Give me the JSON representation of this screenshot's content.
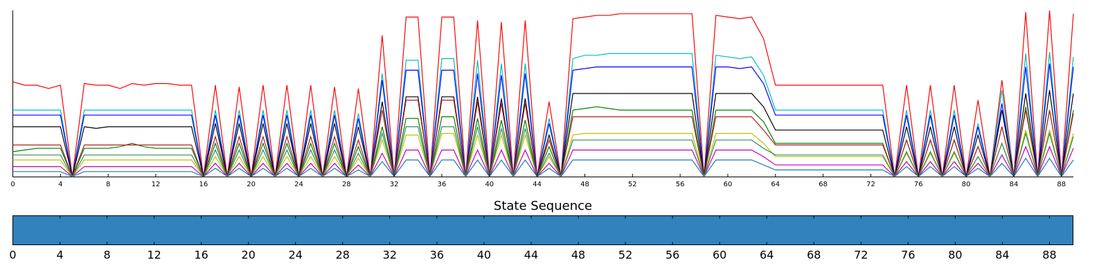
{
  "chart_data": [
    {
      "type": "line",
      "title": "",
      "xlabel": "",
      "ylabel": "",
      "xlim": [
        0,
        89
      ],
      "ylim": [
        0,
        1
      ],
      "x_ticks": [
        0,
        4,
        8,
        12,
        16,
        20,
        24,
        28,
        32,
        36,
        40,
        44,
        48,
        52,
        56,
        60,
        64,
        68,
        72,
        76,
        80,
        84,
        88
      ],
      "y_ticks_shown": false,
      "legend": "none",
      "grid": false,
      "series_colors": [
        "#ff0000",
        "#00bfbf",
        "#0000ff",
        "#000000",
        "#008000",
        "#bfbf00",
        "#bf00bf",
        "#b22222",
        "#1f77b4",
        "#2e8b57"
      ],
      "series": [
        {
          "color": "#ff0000",
          "values": [
            0.57,
            0.55,
            0.55,
            0.53,
            0.55,
            0.0,
            0.56,
            0.55,
            0.55,
            0.53,
            0.56,
            0.55,
            0.56,
            0.56,
            0.55,
            0.55,
            0.0,
            0.55,
            0.0,
            0.54,
            0.0,
            0.55,
            0.0,
            0.55,
            0.0,
            0.55,
            0.0,
            0.54,
            0.0,
            0.53,
            0.0,
            0.85,
            0.0,
            0.96,
            0.96,
            0.0,
            0.96,
            0.96,
            0.0,
            0.94,
            0.0,
            0.93,
            0.0,
            0.94,
            0.0,
            0.45,
            0.0,
            0.95,
            0.96,
            0.97,
            0.97,
            0.98,
            0.98,
            0.98,
            0.98,
            0.98,
            0.98,
            0.98,
            0.0,
            0.97,
            0.96,
            0.95,
            0.96,
            0.83,
            0.55,
            0.55,
            0.55,
            0.55,
            0.55,
            0.55,
            0.55,
            0.55,
            0.55,
            0.55,
            0.0,
            0.55,
            0.0,
            0.55,
            0.0,
            0.55,
            0.0,
            0.46,
            0.0,
            0.58,
            0.0,
            0.99,
            0.0,
            1.0,
            0.0,
            0.98
          ]
        },
        {
          "color": "#00bfbf",
          "values": [
            0.4,
            0.4,
            0.4,
            0.4,
            0.4,
            0.0,
            0.4,
            0.4,
            0.4,
            0.4,
            0.4,
            0.4,
            0.4,
            0.4,
            0.4,
            0.4,
            0.0,
            0.4,
            0.0,
            0.4,
            0.0,
            0.4,
            0.0,
            0.4,
            0.0,
            0.4,
            0.0,
            0.4,
            0.0,
            0.38,
            0.0,
            0.62,
            0.0,
            0.7,
            0.7,
            0.0,
            0.71,
            0.71,
            0.0,
            0.7,
            0.0,
            0.68,
            0.0,
            0.68,
            0.0,
            0.35,
            0.0,
            0.71,
            0.73,
            0.73,
            0.74,
            0.74,
            0.74,
            0.74,
            0.74,
            0.74,
            0.74,
            0.74,
            0.0,
            0.73,
            0.72,
            0.71,
            0.72,
            0.61,
            0.4,
            0.4,
            0.4,
            0.4,
            0.4,
            0.4,
            0.4,
            0.4,
            0.4,
            0.4,
            0.0,
            0.4,
            0.0,
            0.4,
            0.0,
            0.4,
            0.0,
            0.32,
            0.0,
            0.52,
            0.0,
            0.74,
            0.0,
            0.75,
            0.0,
            0.72
          ]
        },
        {
          "color": "#0000ff",
          "values": [
            0.37,
            0.37,
            0.37,
            0.37,
            0.37,
            0.0,
            0.37,
            0.37,
            0.37,
            0.37,
            0.37,
            0.37,
            0.37,
            0.37,
            0.37,
            0.37,
            0.0,
            0.37,
            0.0,
            0.37,
            0.0,
            0.37,
            0.0,
            0.37,
            0.0,
            0.37,
            0.0,
            0.37,
            0.0,
            0.35,
            0.0,
            0.58,
            0.0,
            0.64,
            0.64,
            0.0,
            0.64,
            0.64,
            0.0,
            0.62,
            0.0,
            0.61,
            0.0,
            0.62,
            0.0,
            0.32,
            0.0,
            0.64,
            0.65,
            0.66,
            0.66,
            0.66,
            0.66,
            0.66,
            0.66,
            0.66,
            0.66,
            0.66,
            0.0,
            0.66,
            0.66,
            0.65,
            0.66,
            0.56,
            0.37,
            0.37,
            0.37,
            0.37,
            0.37,
            0.37,
            0.37,
            0.37,
            0.37,
            0.37,
            0.0,
            0.37,
            0.0,
            0.37,
            0.0,
            0.37,
            0.0,
            0.3,
            0.0,
            0.44,
            0.0,
            0.66,
            0.0,
            0.68,
            0.0,
            0.66
          ]
        },
        {
          "color": "#000000",
          "values": [
            0.3,
            0.3,
            0.3,
            0.3,
            0.3,
            0.0,
            0.3,
            0.29,
            0.3,
            0.3,
            0.3,
            0.3,
            0.3,
            0.3,
            0.3,
            0.3,
            0.0,
            0.32,
            0.0,
            0.32,
            0.0,
            0.32,
            0.0,
            0.32,
            0.0,
            0.32,
            0.0,
            0.32,
            0.0,
            0.3,
            0.0,
            0.45,
            0.0,
            0.48,
            0.48,
            0.0,
            0.48,
            0.48,
            0.0,
            0.48,
            0.0,
            0.47,
            0.0,
            0.47,
            0.0,
            0.25,
            0.0,
            0.5,
            0.5,
            0.5,
            0.5,
            0.5,
            0.5,
            0.5,
            0.5,
            0.5,
            0.5,
            0.5,
            0.0,
            0.5,
            0.5,
            0.5,
            0.5,
            0.42,
            0.28,
            0.28,
            0.28,
            0.28,
            0.28,
            0.28,
            0.28,
            0.28,
            0.28,
            0.28,
            0.0,
            0.3,
            0.0,
            0.3,
            0.0,
            0.3,
            0.0,
            0.25,
            0.0,
            0.4,
            0.0,
            0.5,
            0.0,
            0.52,
            0.0,
            0.5
          ]
        },
        {
          "color": "#008000",
          "values": [
            0.15,
            0.16,
            0.17,
            0.17,
            0.17,
            0.0,
            0.17,
            0.17,
            0.17,
            0.18,
            0.2,
            0.18,
            0.17,
            0.17,
            0.17,
            0.17,
            0.0,
            0.2,
            0.0,
            0.2,
            0.0,
            0.2,
            0.0,
            0.2,
            0.0,
            0.2,
            0.0,
            0.2,
            0.0,
            0.18,
            0.0,
            0.3,
            0.0,
            0.35,
            0.35,
            0.0,
            0.36,
            0.36,
            0.0,
            0.35,
            0.0,
            0.34,
            0.0,
            0.34,
            0.0,
            0.18,
            0.0,
            0.4,
            0.41,
            0.42,
            0.41,
            0.4,
            0.4,
            0.4,
            0.4,
            0.4,
            0.4,
            0.4,
            0.0,
            0.4,
            0.4,
            0.4,
            0.4,
            0.33,
            0.2,
            0.2,
            0.2,
            0.2,
            0.2,
            0.2,
            0.2,
            0.2,
            0.2,
            0.2,
            0.0,
            0.22,
            0.0,
            0.22,
            0.0,
            0.22,
            0.0,
            0.18,
            0.0,
            0.3,
            0.0,
            0.42,
            0.0,
            0.4,
            0.0,
            0.4
          ]
        },
        {
          "color": "#bfbf00",
          "values": [
            0.1,
            0.1,
            0.1,
            0.1,
            0.1,
            0.0,
            0.1,
            0.1,
            0.1,
            0.1,
            0.1,
            0.1,
            0.1,
            0.1,
            0.1,
            0.1,
            0.0,
            0.12,
            0.0,
            0.12,
            0.0,
            0.12,
            0.0,
            0.12,
            0.0,
            0.12,
            0.0,
            0.12,
            0.0,
            0.11,
            0.0,
            0.22,
            0.0,
            0.25,
            0.25,
            0.0,
            0.26,
            0.26,
            0.0,
            0.25,
            0.0,
            0.25,
            0.0,
            0.25,
            0.0,
            0.12,
            0.0,
            0.25,
            0.26,
            0.26,
            0.26,
            0.26,
            0.26,
            0.26,
            0.26,
            0.26,
            0.26,
            0.26,
            0.0,
            0.26,
            0.26,
            0.26,
            0.26,
            0.2,
            0.12,
            0.12,
            0.12,
            0.12,
            0.12,
            0.12,
            0.12,
            0.12,
            0.12,
            0.12,
            0.0,
            0.14,
            0.0,
            0.14,
            0.0,
            0.14,
            0.0,
            0.12,
            0.0,
            0.2,
            0.0,
            0.28,
            0.0,
            0.28,
            0.0,
            0.26
          ]
        },
        {
          "color": "#bf00bf",
          "values": [
            0.06,
            0.06,
            0.06,
            0.06,
            0.06,
            0.0,
            0.06,
            0.06,
            0.06,
            0.06,
            0.06,
            0.06,
            0.06,
            0.06,
            0.06,
            0.06,
            0.0,
            0.08,
            0.0,
            0.08,
            0.0,
            0.08,
            0.0,
            0.08,
            0.0,
            0.08,
            0.0,
            0.08,
            0.0,
            0.07,
            0.0,
            0.14,
            0.0,
            0.16,
            0.16,
            0.0,
            0.16,
            0.16,
            0.0,
            0.16,
            0.0,
            0.16,
            0.0,
            0.16,
            0.0,
            0.08,
            0.0,
            0.16,
            0.16,
            0.16,
            0.16,
            0.16,
            0.16,
            0.16,
            0.16,
            0.16,
            0.16,
            0.16,
            0.0,
            0.16,
            0.16,
            0.16,
            0.16,
            0.12,
            0.07,
            0.07,
            0.07,
            0.07,
            0.07,
            0.07,
            0.07,
            0.07,
            0.07,
            0.07,
            0.0,
            0.09,
            0.0,
            0.09,
            0.0,
            0.09,
            0.0,
            0.08,
            0.0,
            0.13,
            0.0,
            0.18,
            0.0,
            0.18,
            0.0,
            0.17
          ]
        },
        {
          "color": "#b22222",
          "values": [
            0.19,
            0.19,
            0.19,
            0.19,
            0.19,
            0.0,
            0.19,
            0.19,
            0.19,
            0.19,
            0.19,
            0.19,
            0.19,
            0.19,
            0.19,
            0.19,
            0.0,
            0.24,
            0.0,
            0.24,
            0.0,
            0.24,
            0.0,
            0.24,
            0.0,
            0.24,
            0.0,
            0.24,
            0.0,
            0.22,
            0.0,
            0.4,
            0.0,
            0.46,
            0.46,
            0.0,
            0.46,
            0.46,
            0.0,
            0.45,
            0.0,
            0.44,
            0.0,
            0.44,
            0.0,
            0.22,
            0.0,
            0.36,
            0.36,
            0.36,
            0.36,
            0.36,
            0.36,
            0.36,
            0.36,
            0.36,
            0.36,
            0.36,
            0.0,
            0.36,
            0.36,
            0.36,
            0.36,
            0.28,
            0.19,
            0.19,
            0.19,
            0.19,
            0.19,
            0.19,
            0.19,
            0.19,
            0.19,
            0.19,
            0.0,
            0.22,
            0.0,
            0.22,
            0.0,
            0.22,
            0.0,
            0.18,
            0.0,
            0.3,
            0.0,
            0.4,
            0.0,
            0.4,
            0.0,
            0.38
          ]
        },
        {
          "color": "#1f77b4",
          "values": [
            0.03,
            0.03,
            0.03,
            0.03,
            0.03,
            0.0,
            0.03,
            0.03,
            0.03,
            0.03,
            0.03,
            0.03,
            0.03,
            0.03,
            0.03,
            0.03,
            0.0,
            0.05,
            0.0,
            0.05,
            0.0,
            0.05,
            0.0,
            0.05,
            0.0,
            0.05,
            0.0,
            0.05,
            0.0,
            0.04,
            0.0,
            0.09,
            0.0,
            0.1,
            0.1,
            0.0,
            0.1,
            0.1,
            0.0,
            0.1,
            0.0,
            0.1,
            0.0,
            0.1,
            0.0,
            0.05,
            0.0,
            0.1,
            0.1,
            0.1,
            0.1,
            0.1,
            0.1,
            0.1,
            0.1,
            0.1,
            0.1,
            0.1,
            0.0,
            0.1,
            0.1,
            0.1,
            0.1,
            0.07,
            0.04,
            0.04,
            0.04,
            0.04,
            0.04,
            0.04,
            0.04,
            0.04,
            0.04,
            0.04,
            0.0,
            0.06,
            0.0,
            0.06,
            0.0,
            0.06,
            0.0,
            0.05,
            0.0,
            0.08,
            0.0,
            0.11,
            0.0,
            0.11,
            0.0,
            0.1
          ]
        },
        {
          "color": "#2e8b57",
          "values": [
            0.13,
            0.13,
            0.13,
            0.13,
            0.13,
            0.0,
            0.13,
            0.13,
            0.13,
            0.13,
            0.13,
            0.13,
            0.13,
            0.13,
            0.13,
            0.13,
            0.0,
            0.16,
            0.0,
            0.16,
            0.0,
            0.16,
            0.0,
            0.16,
            0.0,
            0.16,
            0.0,
            0.16,
            0.0,
            0.14,
            0.0,
            0.26,
            0.0,
            0.3,
            0.3,
            0.0,
            0.3,
            0.3,
            0.0,
            0.3,
            0.0,
            0.29,
            0.0,
            0.29,
            0.0,
            0.14,
            0.0,
            0.22,
            0.22,
            0.22,
            0.22,
            0.22,
            0.22,
            0.22,
            0.22,
            0.22,
            0.22,
            0.22,
            0.0,
            0.22,
            0.22,
            0.22,
            0.22,
            0.17,
            0.13,
            0.13,
            0.13,
            0.13,
            0.13,
            0.13,
            0.13,
            0.13,
            0.13,
            0.13,
            0.0,
            0.15,
            0.0,
            0.15,
            0.0,
            0.15,
            0.0,
            0.12,
            0.0,
            0.2,
            0.0,
            0.26,
            0.0,
            0.26,
            0.0,
            0.24
          ]
        }
      ]
    },
    {
      "type": "heatmap",
      "title": "State Sequence",
      "xlim": [
        0,
        90
      ],
      "x_ticks": [
        0,
        4,
        8,
        12,
        16,
        20,
        24,
        28,
        32,
        36,
        40,
        44,
        48,
        52,
        56,
        60,
        64,
        68,
        72,
        76,
        80,
        84,
        88
      ],
      "state_color": "#3182bd",
      "grid": false
    }
  ]
}
